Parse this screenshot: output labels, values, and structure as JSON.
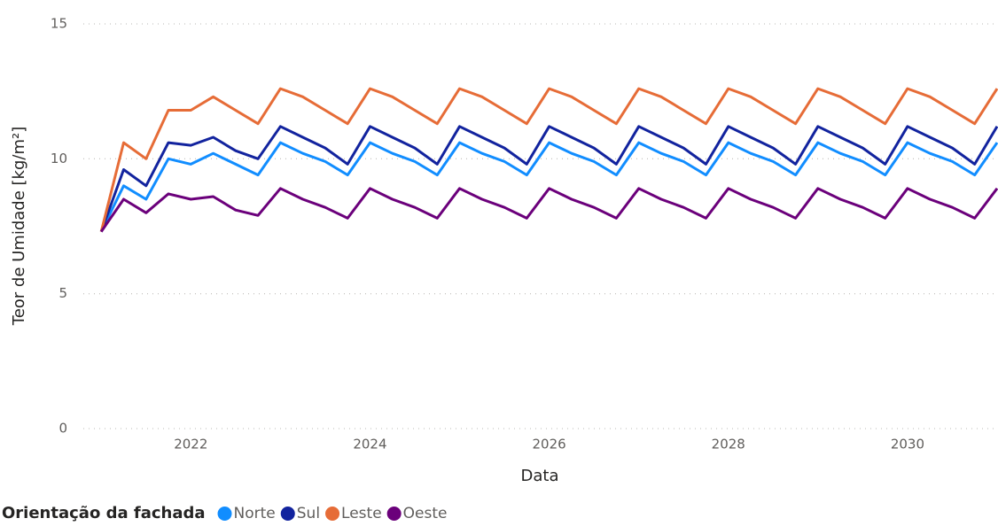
{
  "chart_data": {
    "type": "line",
    "x_label": "Data",
    "y_label": "Teor de Umidade [kg/m²]",
    "legend_title": "Orientação da fachada",
    "x": [
      2021,
      2021.25,
      2021.5,
      2021.75,
      2022,
      2022.25,
      2022.5,
      2022.75,
      2023,
      2023.25,
      2023.5,
      2023.75,
      2024,
      2024.25,
      2024.5,
      2024.75,
      2025,
      2025.25,
      2025.5,
      2025.75,
      2026,
      2026.25,
      2026.5,
      2026.75,
      2027,
      2027.25,
      2027.5,
      2027.75,
      2028,
      2028.25,
      2028.5,
      2028.75,
      2029,
      2029.25,
      2029.5,
      2029.75,
      2030,
      2030.25,
      2030.5,
      2030.75,
      2031
    ],
    "series": [
      {
        "name": "Norte",
        "color": "#118dff",
        "values": [
          7.3,
          9.0,
          8.5,
          10.0,
          9.8,
          10.2,
          9.8,
          9.4,
          10.6,
          10.2,
          9.9,
          9.4,
          10.6,
          10.2,
          9.9,
          9.4,
          10.6,
          10.2,
          9.9,
          9.4,
          10.6,
          10.2,
          9.9,
          9.4,
          10.6,
          10.2,
          9.9,
          9.4,
          10.6,
          10.2,
          9.9,
          9.4,
          10.6,
          10.2,
          9.9,
          9.4,
          10.6,
          10.2,
          9.9,
          9.4,
          10.6
        ]
      },
      {
        "name": "Sul",
        "color": "#12239e",
        "values": [
          7.3,
          9.6,
          9.0,
          10.6,
          10.5,
          10.8,
          10.3,
          10.0,
          11.2,
          10.8,
          10.4,
          9.8,
          11.2,
          10.8,
          10.4,
          9.8,
          11.2,
          10.8,
          10.4,
          9.8,
          11.2,
          10.8,
          10.4,
          9.8,
          11.2,
          10.8,
          10.4,
          9.8,
          11.2,
          10.8,
          10.4,
          9.8,
          11.2,
          10.8,
          10.4,
          9.8,
          11.2,
          10.8,
          10.4,
          9.8,
          11.2
        ]
      },
      {
        "name": "Leste",
        "color": "#e66c37",
        "values": [
          7.3,
          10.6,
          10.0,
          11.8,
          11.8,
          12.3,
          11.8,
          11.3,
          12.6,
          12.3,
          11.8,
          11.3,
          12.6,
          12.3,
          11.8,
          11.3,
          12.6,
          12.3,
          11.8,
          11.3,
          12.6,
          12.3,
          11.8,
          11.3,
          12.6,
          12.3,
          11.8,
          11.3,
          12.6,
          12.3,
          11.8,
          11.3,
          12.6,
          12.3,
          11.8,
          11.3,
          12.6,
          12.3,
          11.8,
          11.3,
          12.6
        ]
      },
      {
        "name": "Oeste",
        "color": "#6b007b",
        "values": [
          7.3,
          8.5,
          8.0,
          8.7,
          8.5,
          8.6,
          8.1,
          7.9,
          8.9,
          8.5,
          8.2,
          7.8,
          8.9,
          8.5,
          8.2,
          7.8,
          8.9,
          8.5,
          8.2,
          7.8,
          8.9,
          8.5,
          8.2,
          7.8,
          8.9,
          8.5,
          8.2,
          7.8,
          8.9,
          8.5,
          8.2,
          7.8,
          8.9,
          8.5,
          8.2,
          7.8,
          8.9,
          8.5,
          8.2,
          7.8,
          8.9
        ]
      }
    ],
    "xlim": [
      2020.8,
      2031.0
    ],
    "xticks": [
      2022,
      2024,
      2026,
      2028,
      2030
    ],
    "ylim": [
      0,
      15
    ],
    "yticks": [
      0,
      5,
      10,
      15
    ],
    "grid": true
  }
}
